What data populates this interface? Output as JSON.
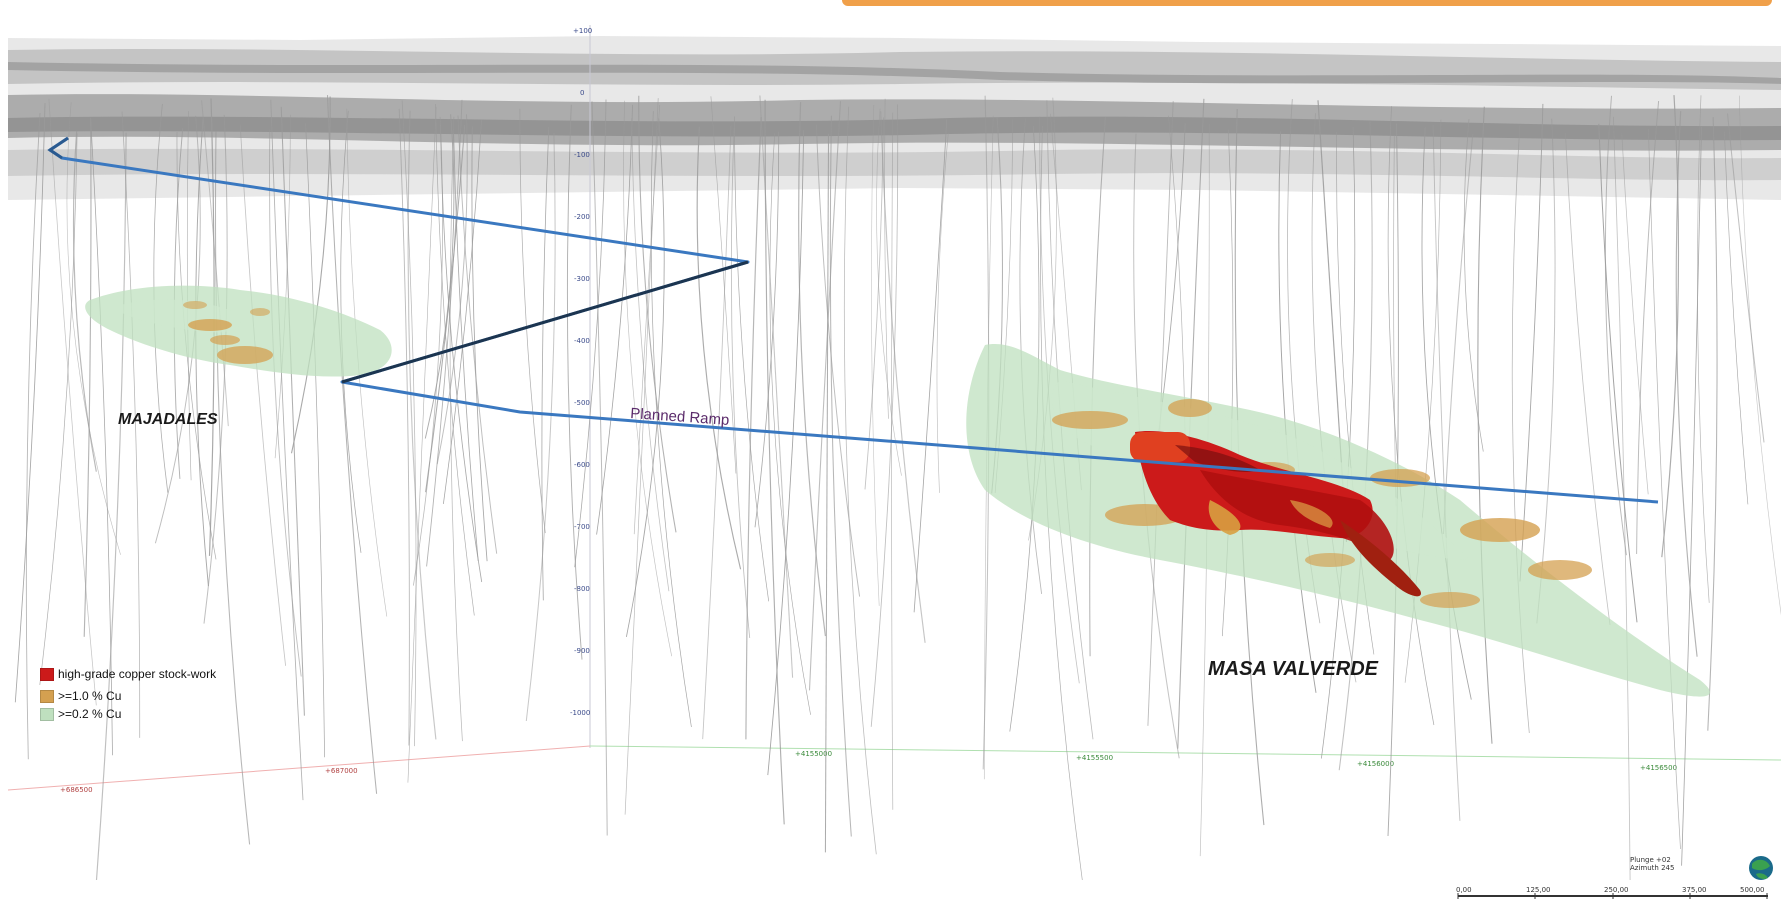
{
  "labels": {
    "majadales": "MAJADALES",
    "masa_valverde": "MASA VALVERDE",
    "planned_ramp": "Planned Ramp"
  },
  "legend": {
    "items": [
      {
        "label": "high-grade copper stock-work",
        "color": "#cc1a1a"
      },
      {
        "label": ">=1.0 % Cu",
        "color": "#d4a050"
      },
      {
        "label": ">=0.2 % Cu",
        "color": "#bfe0bf"
      }
    ]
  },
  "depth_ticks": [
    "+100",
    "0",
    "-100",
    "-200",
    "-300",
    "-400",
    "-500",
    "-600",
    "-700",
    "-800",
    "-900",
    "-1000"
  ],
  "easting_ticks": [
    "+686500",
    "+687000"
  ],
  "northing_ticks": [
    "+4155000",
    "+4155500",
    "+4156000",
    "+4156500"
  ],
  "orientation": {
    "plunge": "Plunge +02",
    "azimuth": "Azimuth 245"
  },
  "scale_bar": {
    "labels": [
      "0,00",
      "125,00",
      "250,00",
      "375,00",
      "500,00"
    ]
  },
  "colors": {
    "ramp": "#3a78c0",
    "ramp_dark": "#1c3550",
    "drillhole": "#9a9a9a",
    "surface_layers": "#9e9e9e",
    "high_grade": "#cc1a1a",
    "cu_1_0": "#d4a050",
    "cu_0_2": "#bfe0bf",
    "accent_panel": "#f0a04a"
  }
}
